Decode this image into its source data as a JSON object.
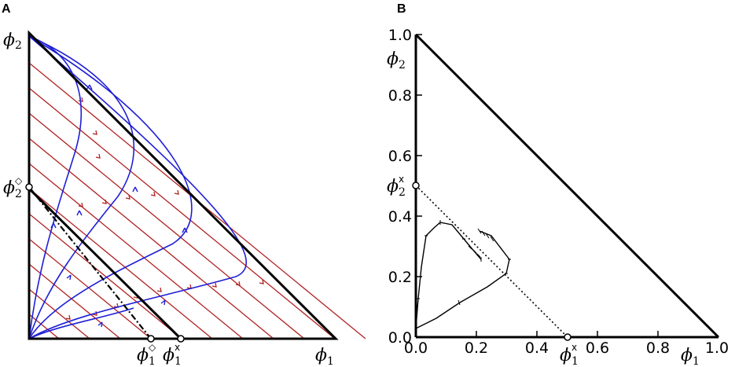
{
  "panel_a": {
    "label": "A",
    "labels": {
      "phi2": "ϕ",
      "phi2_sub": "2",
      "phi2d": "ϕ",
      "phi2d_sub": "2",
      "phi2d_sup": "◇",
      "phi1d": "ϕ",
      "phi1d_sub": "1",
      "phi1d_sup": "◇",
      "phi1x": "ϕ",
      "phi1x_sub": "1",
      "phi1x_sup": "x",
      "phi1": "ϕ",
      "phi1_sub": "1"
    },
    "colors": {
      "red_lines": "#b22222",
      "blue_curves": "#1f1fd6",
      "black": "#000000"
    }
  },
  "panel_b": {
    "label": "B",
    "y_ticks": [
      "0.0",
      "0.2",
      "0.4",
      "0.6",
      "0.8",
      "1.0"
    ],
    "x_ticks": [
      "0.0",
      "0.2",
      "0.4",
      "0.6",
      "0.8",
      "1.0"
    ],
    "labels": {
      "phi2": "ϕ",
      "phi2_sub": "2",
      "phi2x": "ϕ",
      "phi2x_sub": "2",
      "phi2x_sup": "x",
      "phi1x": "ϕ",
      "phi1x_sub": "1",
      "phi1x_sup": "x",
      "phi1": "ϕ",
      "phi1_sub": "1"
    }
  }
}
